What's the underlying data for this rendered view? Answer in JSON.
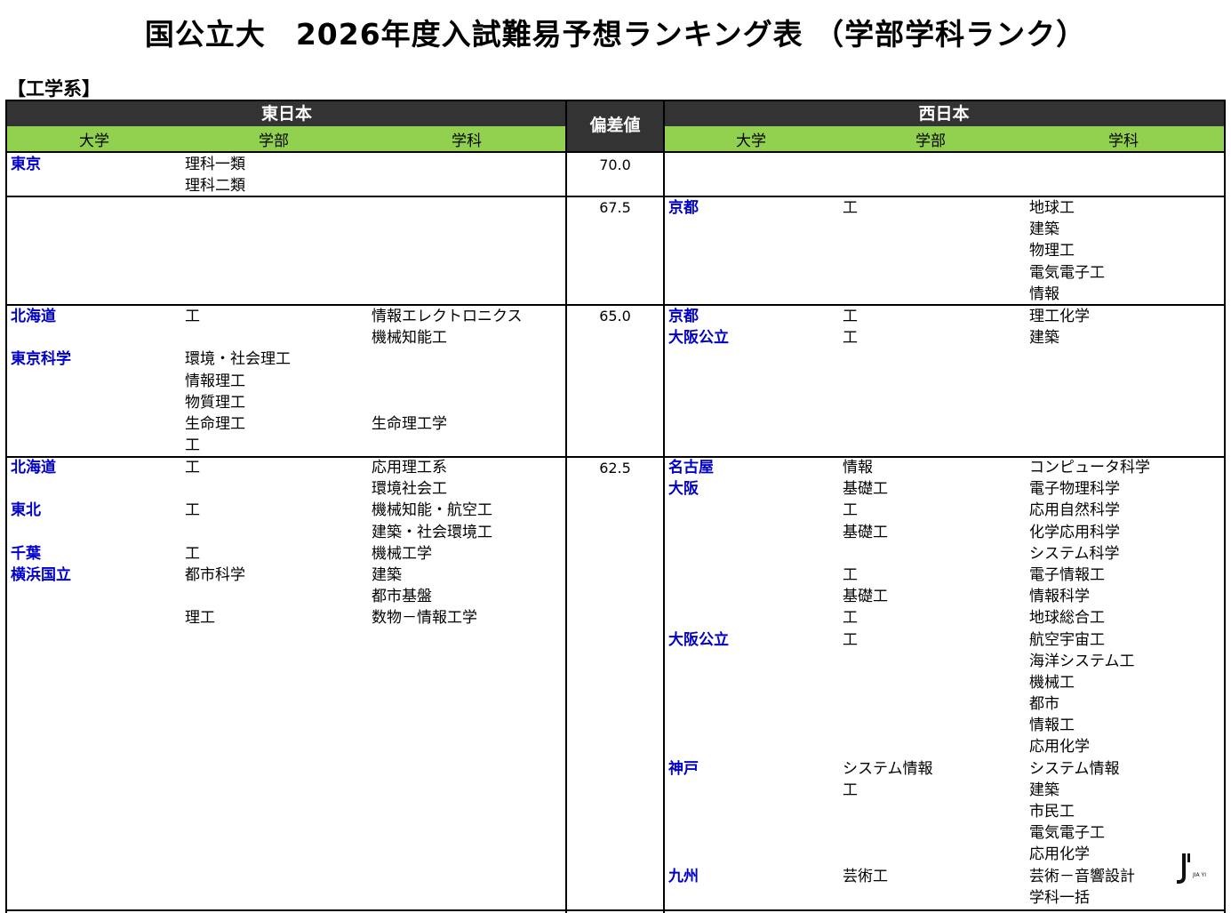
{
  "title": "国公立大　2026年度入試難易予想ランキング表 （学部学科ランク）",
  "section": "【工学系】",
  "header": {
    "east": "東日本",
    "west": "西日本",
    "score": "偏差値",
    "col_university": "大学",
    "col_faculty": "学部",
    "col_department": "学科"
  },
  "bands": [
    {
      "score": "70.0",
      "east": {
        "uni": [
          "東京",
          ""
        ],
        "fac": [
          "理科一類",
          "理科二類"
        ],
        "dept": [
          "",
          ""
        ]
      },
      "west": {
        "uni": [],
        "fac": [],
        "dept": []
      }
    },
    {
      "score": "67.5",
      "east": {
        "uni": [],
        "fac": [],
        "dept": []
      },
      "west": {
        "uni": [
          "京都",
          "",
          "",
          "",
          ""
        ],
        "fac": [
          "工",
          "",
          "",
          "",
          ""
        ],
        "dept": [
          "地球工",
          "建築",
          "物理工",
          "電気電子工",
          "情報"
        ]
      }
    },
    {
      "score": "65.0",
      "east": {
        "uni": [
          "北海道",
          "",
          "東京科学",
          "",
          "",
          "",
          ""
        ],
        "fac": [
          "工",
          "",
          "環境・社会理工",
          "情報理工",
          "物質理工",
          "生命理工",
          "工"
        ],
        "dept": [
          "情報エレクトロニクス",
          "機械知能工",
          "",
          "",
          "",
          "生命理工学",
          ""
        ]
      },
      "west": {
        "uni": [
          "京都",
          "大阪公立"
        ],
        "fac": [
          "工",
          "工"
        ],
        "dept": [
          "理工化学",
          "建築"
        ]
      }
    },
    {
      "score": "62.5",
      "east": {
        "uni": [
          "北海道",
          "",
          "東北",
          "",
          "千葉",
          "横浜国立",
          "",
          ""
        ],
        "fac": [
          "工",
          "",
          "工",
          "",
          "工",
          "都市科学",
          "",
          "理工"
        ],
        "dept": [
          "応用理工系",
          "環境社会工",
          "機械知能・航空工",
          "建築・社会環境工",
          "機械工学",
          "建築",
          "都市基盤",
          "数物－情報工学"
        ]
      },
      "west": {
        "uni": [
          "名古屋",
          "大阪",
          "",
          "",
          "",
          "",
          "",
          "",
          "大阪公立",
          "",
          "",
          "",
          "",
          "",
          "神戸",
          "",
          "",
          "",
          "",
          "九州",
          ""
        ],
        "fac": [
          "情報",
          "基礎工",
          "工",
          "基礎工",
          "",
          "工",
          "基礎工",
          "工",
          "工",
          "",
          "",
          "",
          "",
          "",
          "システム情報",
          "工",
          "",
          "",
          "",
          "芸術工",
          ""
        ],
        "dept": [
          "コンピュータ科学",
          "電子物理科学",
          "応用自然科学",
          "化学応用科学",
          "システム科学",
          "電子情報工",
          "情報科学",
          "地球総合工",
          "航空宇宙工",
          "海洋システム工",
          "機械工",
          "都市",
          "情報工",
          "応用化学",
          "システム情報",
          "建築",
          "市民工",
          "電気電子工",
          "応用化学",
          "芸術－音響設計",
          "学科一括"
        ]
      }
    }
  ],
  "logo": {
    "mark": "J",
    "text": "JIA YI"
  }
}
